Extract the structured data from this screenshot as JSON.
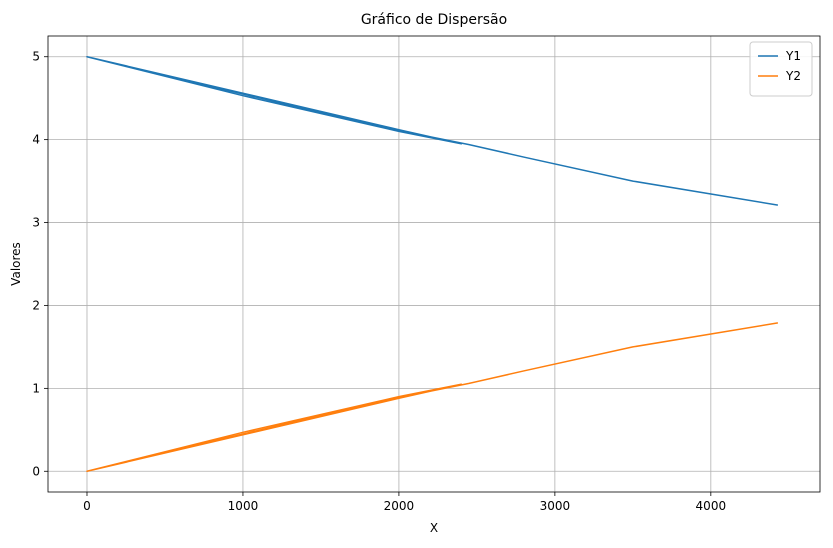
{
  "chart_data": {
    "type": "line",
    "title": "Gráfico de Dispersão",
    "xlabel": "X",
    "ylabel": "Valores",
    "xlim": [
      -250,
      4700
    ],
    "ylim": [
      -0.25,
      5.25
    ],
    "xticks": [
      0,
      1000,
      2000,
      3000,
      4000
    ],
    "yticks": [
      0,
      1,
      2,
      3,
      4,
      5
    ],
    "grid": true,
    "legend_position": "top-right",
    "series": [
      {
        "name": "Y1",
        "color": "#1f77b4",
        "x": [
          0,
          1000,
          2000,
          2400,
          2000,
          1000,
          0,
          1000,
          2000,
          2450,
          2800,
          3500,
          4430
        ],
        "y": [
          5.0,
          4.56,
          4.12,
          3.95,
          4.1,
          4.53,
          5.0,
          4.55,
          4.11,
          3.94,
          3.79,
          3.5,
          3.21
        ]
      },
      {
        "name": "Y2",
        "color": "#ff7f0e",
        "x": [
          0,
          1000,
          2000,
          2400,
          2000,
          1000,
          0,
          1000,
          2000,
          2450,
          2800,
          3500,
          4430
        ],
        "y": [
          0.0,
          0.44,
          0.88,
          1.05,
          0.9,
          0.47,
          0.0,
          0.45,
          0.89,
          1.06,
          1.21,
          1.5,
          1.79
        ]
      }
    ]
  }
}
